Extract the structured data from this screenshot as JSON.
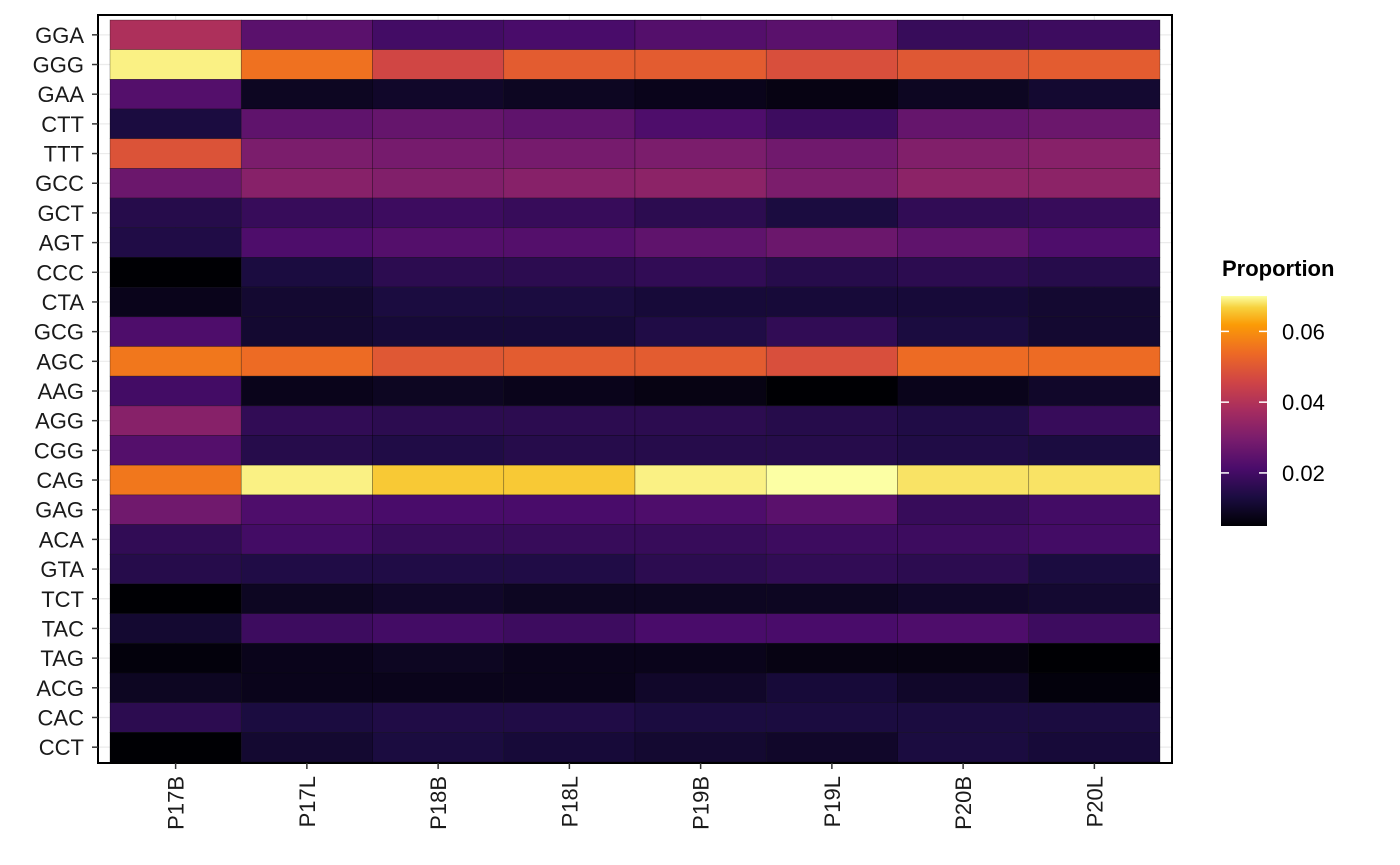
{
  "chart_data": {
    "type": "heatmap",
    "title": "",
    "xlabel": "",
    "ylabel": "",
    "x": [
      "P17B",
      "P17L",
      "P18B",
      "P18L",
      "P19B",
      "P19L",
      "P20B",
      "P20L"
    ],
    "y": [
      "GGA",
      "GGG",
      "GAA",
      "CTT",
      "TTT",
      "GCC",
      "GCT",
      "AGT",
      "CCC",
      "CTA",
      "GCG",
      "AGC",
      "AAG",
      "AGG",
      "CGG",
      "CAG",
      "GAG",
      "ACA",
      "GTA",
      "TCT",
      "TAC",
      "TAG",
      "ACG",
      "CAC",
      "CCT"
    ],
    "values": [
      [
        0.039,
        0.024,
        0.02,
        0.021,
        0.023,
        0.024,
        0.018,
        0.019
      ],
      [
        0.069,
        0.055,
        0.046,
        0.051,
        0.051,
        0.048,
        0.05,
        0.051
      ],
      [
        0.023,
        0.009,
        0.01,
        0.009,
        0.008,
        0.007,
        0.009,
        0.011
      ],
      [
        0.013,
        0.025,
        0.026,
        0.025,
        0.022,
        0.019,
        0.026,
        0.027
      ],
      [
        0.049,
        0.03,
        0.029,
        0.029,
        0.03,
        0.028,
        0.031,
        0.032
      ],
      [
        0.027,
        0.032,
        0.031,
        0.032,
        0.033,
        0.03,
        0.033,
        0.033
      ],
      [
        0.015,
        0.018,
        0.019,
        0.018,
        0.016,
        0.013,
        0.017,
        0.018
      ],
      [
        0.014,
        0.022,
        0.023,
        0.023,
        0.025,
        0.027,
        0.025,
        0.022
      ],
      [
        0.005,
        0.013,
        0.016,
        0.016,
        0.017,
        0.015,
        0.016,
        0.015
      ],
      [
        0.008,
        0.011,
        0.013,
        0.013,
        0.012,
        0.012,
        0.012,
        0.011
      ],
      [
        0.022,
        0.011,
        0.012,
        0.012,
        0.014,
        0.017,
        0.013,
        0.011
      ],
      [
        0.056,
        0.054,
        0.05,
        0.051,
        0.051,
        0.048,
        0.054,
        0.054
      ],
      [
        0.02,
        0.008,
        0.009,
        0.008,
        0.007,
        0.004,
        0.008,
        0.01
      ],
      [
        0.032,
        0.017,
        0.016,
        0.016,
        0.016,
        0.015,
        0.014,
        0.018
      ],
      [
        0.023,
        0.015,
        0.014,
        0.015,
        0.015,
        0.015,
        0.014,
        0.013
      ],
      [
        0.056,
        0.069,
        0.066,
        0.066,
        0.069,
        0.07,
        0.068,
        0.068
      ],
      [
        0.028,
        0.022,
        0.021,
        0.021,
        0.022,
        0.024,
        0.018,
        0.02
      ],
      [
        0.017,
        0.02,
        0.018,
        0.018,
        0.018,
        0.019,
        0.019,
        0.02
      ],
      [
        0.015,
        0.014,
        0.014,
        0.014,
        0.016,
        0.017,
        0.016,
        0.013
      ],
      [
        0.003,
        0.009,
        0.01,
        0.009,
        0.009,
        0.009,
        0.01,
        0.011
      ],
      [
        0.011,
        0.019,
        0.02,
        0.019,
        0.021,
        0.021,
        0.022,
        0.019
      ],
      [
        0.006,
        0.008,
        0.009,
        0.008,
        0.008,
        0.007,
        0.007,
        0.005
      ],
      [
        0.009,
        0.008,
        0.008,
        0.008,
        0.01,
        0.012,
        0.01,
        0.006
      ],
      [
        0.016,
        0.013,
        0.014,
        0.014,
        0.013,
        0.013,
        0.013,
        0.013
      ],
      [
        0.004,
        0.011,
        0.013,
        0.012,
        0.011,
        0.01,
        0.013,
        0.012
      ]
    ],
    "colorscale": "inferno",
    "colorbar": {
      "title": "Proportion",
      "range": [
        0.005,
        0.07
      ],
      "ticks": [
        0.02,
        0.04,
        0.06
      ],
      "tick_labels": [
        "0.02",
        "0.04",
        "0.06"
      ]
    },
    "grid": true,
    "legend_position": "right"
  }
}
